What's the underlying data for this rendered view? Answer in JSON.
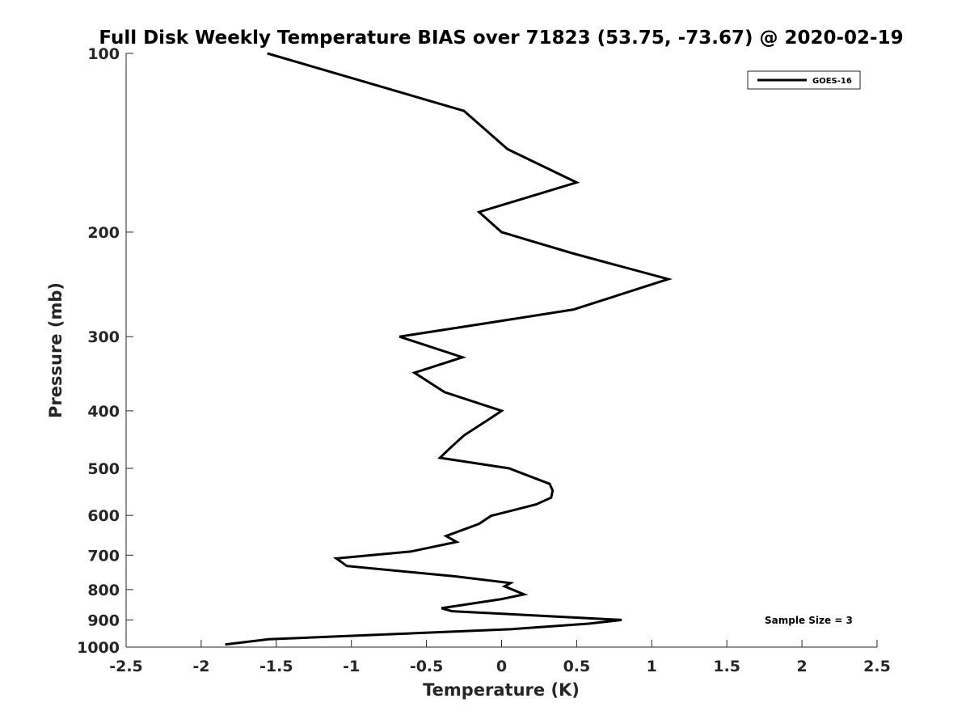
{
  "chart_data": {
    "type": "line",
    "title": "Full Disk Weekly Temperature BIAS over 71823 (53.75, -73.67) @ 2020-02-19",
    "xlabel": "Temperature (K)",
    "ylabel": "Pressure (mb)",
    "xlim": [
      -2.5,
      2.5
    ],
    "ylim": [
      1000,
      100
    ],
    "y_scale": "log",
    "x_ticks": [
      "-2.5",
      "-2",
      "-1.5",
      "-1",
      "-0.5",
      "0",
      "0.5",
      "1",
      "1.5",
      "2",
      "2.5"
    ],
    "y_ticks": [
      "100",
      "200",
      "300",
      "400",
      "500",
      "600",
      "700",
      "800",
      "900",
      "1000"
    ],
    "grid": false,
    "legend": {
      "position": "top-right",
      "entries": [
        "GOES-16"
      ]
    },
    "annotation": "Sample Size = 3",
    "series": [
      {
        "name": "GOES-16",
        "color": "#000000",
        "x": [
          -1.56,
          -0.25,
          0.04,
          0.5,
          -0.15,
          0.0,
          0.47,
          1.11,
          0.48,
          -0.15,
          -0.68,
          -0.26,
          -0.58,
          -0.38,
          0.0,
          -0.07,
          -0.25,
          -0.35,
          -0.41,
          0.05,
          0.32,
          0.34,
          0.33,
          0.23,
          -0.07,
          -0.15,
          -0.37,
          -0.3,
          -0.6,
          -1.1,
          -1.03,
          -0.31,
          0.06,
          0.02,
          0.15,
          0.0,
          -0.4,
          -0.33,
          0.8,
          0.58,
          0.06,
          -1.55,
          -1.84
        ],
        "y": [
          100,
          125,
          145,
          165,
          185,
          200,
          217,
          240,
          270,
          286,
          300,
          325,
          345,
          372,
          400,
          411,
          440,
          464,
          480,
          500,
          531,
          545,
          560,
          575,
          601,
          620,
          650,
          665,
          690,
          709,
          730,
          760,
          780,
          790,
          815,
          830,
          860,
          870,
          900,
          913,
          933,
          970,
          990
        ]
      }
    ]
  }
}
